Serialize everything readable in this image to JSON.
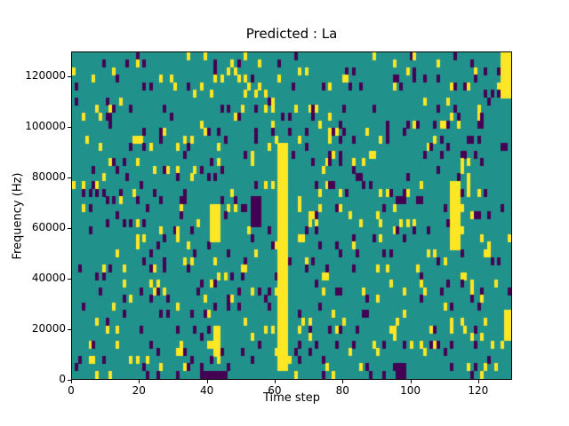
{
  "figure": {
    "title": "Predicted : La",
    "xlabel": "Time step",
    "ylabel": "Frequency (Hz)"
  },
  "chart_data": {
    "type": "heatmap",
    "title": "Predicted : La",
    "xlabel": "Time step",
    "ylabel": "Frequency (Hz)",
    "x_range": [
      0,
      130
    ],
    "y_range": [
      0,
      130000
    ],
    "x_ticks": [
      0,
      20,
      40,
      60,
      80,
      100,
      120
    ],
    "y_ticks": [
      0,
      20000,
      40000,
      60000,
      80000,
      100000,
      120000
    ],
    "grid": {
      "cols": 130,
      "rows": 43
    },
    "palette": {
      "mid": "#21918c",
      "high": "#fde725",
      "low": "#440154",
      "axes": "#000000",
      "figure_bg": "#ffffff"
    },
    "legend": "none",
    "scatter": {
      "seed": 1337,
      "high_density": 0.052,
      "low_density": 0.052
    },
    "features": [
      {
        "shape": "rect",
        "value": "high",
        "x": [
          61,
          64
        ],
        "y": [
          2000,
          95000
        ],
        "note": "strong solid yellow vertical band near time step 62"
      },
      {
        "shape": "rect",
        "value": "high",
        "x": [
          112,
          115
        ],
        "y": [
          50000,
          78000
        ],
        "note": "yellow patch on right side around 60 kHz"
      },
      {
        "shape": "rect",
        "value": "high",
        "x": [
          41,
          44
        ],
        "y": [
          54000,
          70000
        ],
        "note": "yellow patch near time 42 around 60 kHz"
      },
      {
        "shape": "rect",
        "value": "high",
        "x": [
          42,
          44
        ],
        "y": [
          8000,
          22000
        ],
        "note": "yellow run lower-left-center"
      },
      {
        "shape": "rect",
        "value": "high",
        "x": [
          127,
          130
        ],
        "y": [
          112000,
          130000
        ],
        "note": "yellow block top-right edge"
      },
      {
        "shape": "rect",
        "value": "high",
        "x": [
          128,
          130
        ],
        "y": [
          16000,
          26000
        ],
        "note": "yellow block lower-right edge"
      },
      {
        "shape": "rect",
        "value": "low",
        "x": [
          38,
          46
        ],
        "y": [
          0,
          4000
        ],
        "note": "dark purple cluster at bottom near time 40"
      },
      {
        "shape": "rect",
        "value": "low",
        "x": [
          96,
          99
        ],
        "y": [
          0,
          5000
        ],
        "note": "dark purple cluster at bottom near time 97"
      },
      {
        "shape": "rect",
        "value": "low",
        "x": [
          53,
          56
        ],
        "y": [
          60000,
          74000
        ],
        "note": "dark purple patch left of the main yellow band"
      }
    ]
  }
}
